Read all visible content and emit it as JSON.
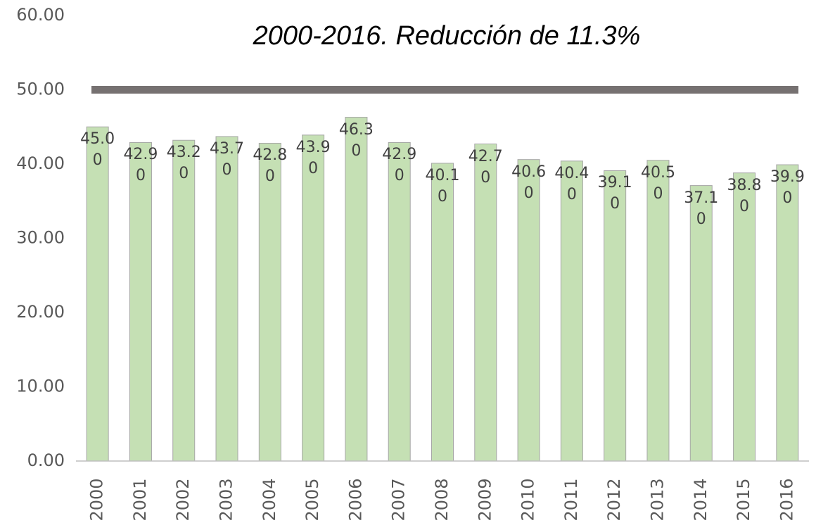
{
  "chart_data": {
    "type": "bar",
    "title": "2000-2016. Reducción de 11.3%",
    "categories": [
      "2000",
      "2001",
      "2002",
      "2003",
      "2004",
      "2005",
      "2006",
      "2007",
      "2008",
      "2009",
      "2010",
      "2011",
      "2012",
      "2013",
      "2014",
      "2015",
      "2016"
    ],
    "values": [
      45.0,
      42.9,
      43.2,
      43.7,
      42.8,
      43.9,
      46.3,
      42.9,
      40.1,
      42.7,
      40.6,
      40.4,
      39.1,
      40.5,
      37.1,
      38.8,
      39.9
    ],
    "value_labels": [
      "45.00",
      "42.90",
      "43.20",
      "43.70",
      "42.80",
      "43.90",
      "46.30",
      "42.90",
      "40.10",
      "42.70",
      "40.60",
      "40.40",
      "39.10",
      "40.50",
      "37.10",
      "38.80",
      "39.90"
    ],
    "color": "#c5e0b4",
    "reference_line": {
      "value": 50,
      "color": "#767171"
    },
    "ylim": [
      0,
      60
    ],
    "yticks": [
      {
        "value": 0,
        "label": "0.00"
      },
      {
        "value": 10,
        "label": "10.00"
      },
      {
        "value": 20,
        "label": "20.00"
      },
      {
        "value": 30,
        "label": "30.00"
      },
      {
        "value": 40,
        "label": "40.00"
      },
      {
        "value": 50,
        "label": "50.00"
      },
      {
        "value": 60,
        "label": "60.00"
      }
    ],
    "grid": false
  }
}
